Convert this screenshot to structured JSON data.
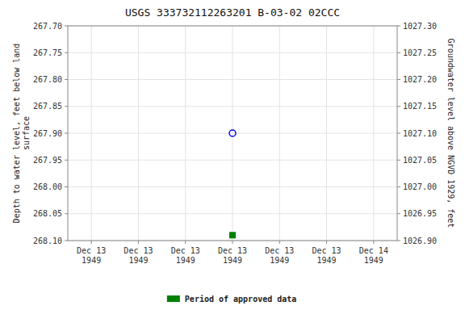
{
  "chart_data": {
    "type": "scatter",
    "title": "USGS 333732112263201 B-03-02 02CCC",
    "ylabel": "Depth to water level, feet below land\nsurface",
    "y2label": "Groundwater level above NGVD 1929, feet",
    "categories": [
      "Dec 13\n1949",
      "Dec 13\n1949",
      "Dec 13\n1949",
      "Dec 13\n1949",
      "Dec 13\n1949",
      "Dec 13\n1949",
      "Dec 14\n1949"
    ],
    "series": [
      {
        "color": "#0000ff",
        "marker": "open-circle",
        "values": [
          null,
          null,
          null,
          267.9,
          null,
          null,
          null
        ]
      },
      {
        "name": "Period of approved data",
        "color": "#008000",
        "marker": "square",
        "values": [
          null,
          null,
          null,
          268.09,
          null,
          null,
          null
        ]
      }
    ],
    "ylim": [
      268.1,
      267.7
    ],
    "yticks": [
      {
        "value": 267.7,
        "label": "267.70"
      },
      267.75,
      {
        "value": 267.8,
        "label": "267.80"
      },
      267.85,
      {
        "value": 267.9,
        "label": "267.90"
      },
      267.95,
      {
        "value": 268.0,
        "label": "268.00"
      },
      268.05,
      {
        "value": 268.1,
        "label": "268.10"
      }
    ],
    "y2lim": [
      1026.9,
      1027.3
    ],
    "y2ticks": [
      {
        "value": 1027.3,
        "label": "1027.30"
      },
      1027.25,
      {
        "value": 1027.2,
        "label": "1027.20"
      },
      1027.15,
      {
        "value": 1027.1,
        "label": "1027.10"
      },
      1027.05,
      {
        "value": 1027.0,
        "label": "1027.00"
      },
      1026.95,
      {
        "value": 1026.9,
        "label": "1026.90"
      }
    ],
    "grid": true,
    "legend": "bottom"
  }
}
